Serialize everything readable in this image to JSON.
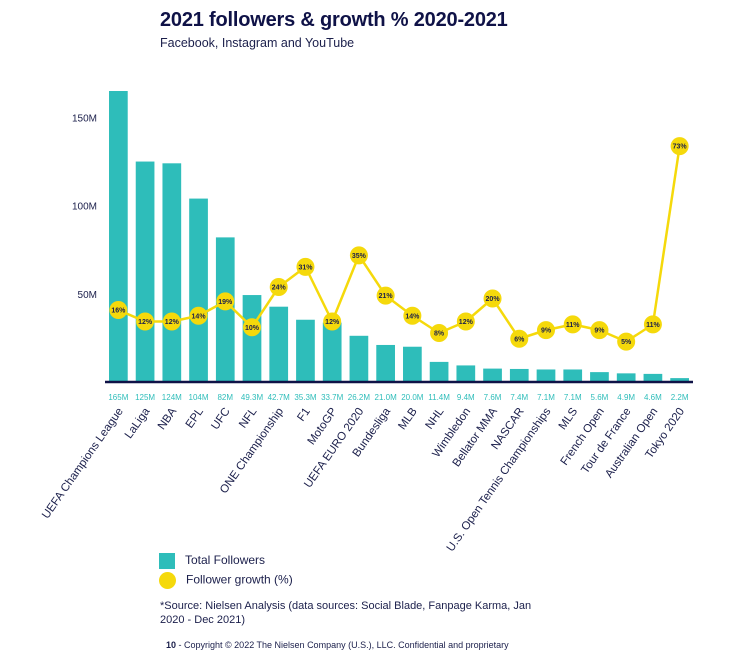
{
  "header": {
    "title": "2021 followers & growth % 2020-2021",
    "subtitle": "Facebook, Instagram and YouTube"
  },
  "legend": {
    "bars_label": "Total Followers",
    "line_label": "Follower growth (%)"
  },
  "source": "*Source: Nielsen Analysis (data sources: Social Blade, Fanpage Karma, Jan 2020 - Dec 2021)",
  "footer": {
    "page": "10",
    "text": "- Copyright © 2022 The Nielsen Company (U.S.), LLC. Confidential and proprietary"
  },
  "colors": {
    "bars": "#2ebdba",
    "line": "#f5d90b",
    "axis": "#0f1247"
  },
  "chart_data": {
    "type": "bar",
    "title": "2021 followers & growth % 2020-2021",
    "subtitle": "Facebook, Instagram and YouTube",
    "categories": [
      "UEFA Champions League",
      "LaLiga",
      "NBA",
      "EPL",
      "UFC",
      "NFL",
      "ONE Championship",
      "F1",
      "MotoGP",
      "UEFA EURO 2020",
      "Bundesliga",
      "MLB",
      "NHL",
      "Wimbledon",
      "Bellator MMA",
      "NASCAR",
      "U.S. Open Tennis Championships",
      "MLS",
      "French Open",
      "Tour de France",
      "Australian Open",
      "Tokyo 2020"
    ],
    "series": [
      {
        "name": "Total Followers",
        "type": "bar",
        "values": [
          165,
          125,
          124,
          104,
          82,
          49.3,
          42.7,
          35.3,
          33.7,
          26.2,
          21.0,
          20.0,
          11.4,
          9.4,
          7.6,
          7.4,
          7.1,
          7.1,
          5.6,
          4.9,
          4.6,
          2.2
        ],
        "value_labels": [
          "165M",
          "125M",
          "124M",
          "104M",
          "82M",
          "49.3M",
          "42.7M",
          "35.3M",
          "33.7M",
          "26.2M",
          "21.0M",
          "20.0M",
          "11.4M",
          "9.4M",
          "7.6M",
          "7.4M",
          "7.1M",
          "7.1M",
          "5.6M",
          "4.9M",
          "4.6M",
          "2.2M"
        ]
      },
      {
        "name": "Follower growth (%)",
        "type": "line",
        "values": [
          16,
          12,
          12,
          14,
          19,
          10,
          24,
          31,
          12,
          35,
          21,
          14,
          8,
          12,
          20,
          6,
          9,
          11,
          9,
          5,
          11,
          73
        ],
        "value_labels": [
          "16%",
          "12%",
          "12%",
          "14%",
          "19%",
          "10%",
          "24%",
          "31%",
          "12%",
          "35%",
          "21%",
          "14%",
          "8%",
          "12%",
          "20%",
          "6%",
          "9%",
          "11%",
          "9%",
          "5%",
          "11%",
          "73%"
        ]
      }
    ],
    "y_axis": {
      "ticks": [
        50,
        100,
        150
      ],
      "tick_labels": [
        "50M",
        "100M",
        "150M"
      ],
      "range": [
        0,
        165
      ]
    },
    "growth_axis_range": [
      0,
      80
    ]
  }
}
